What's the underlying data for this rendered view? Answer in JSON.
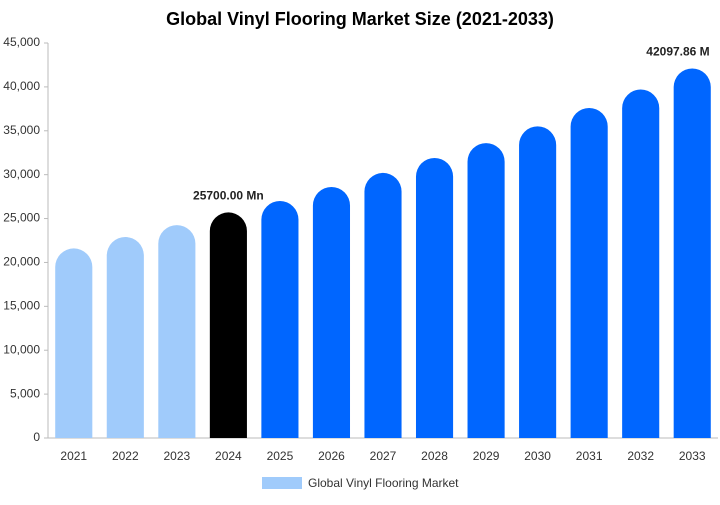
{
  "chart_data": {
    "type": "bar",
    "title": "Global Vinyl Flooring Market Size (2021-2033)",
    "categories": [
      "2021",
      "2022",
      "2023",
      "2024",
      "2025",
      "2026",
      "2027",
      "2028",
      "2029",
      "2030",
      "2031",
      "2032",
      "2033"
    ],
    "series": [
      {
        "name": "Global Vinyl Flooring Market",
        "color": "#a0cbfb",
        "bar_colors": [
          "#a0cbfb",
          "#a0cbfb",
          "#a0cbfb",
          "#000000",
          "#0066ff",
          "#0066ff",
          "#0066ff",
          "#0066ff",
          "#0066ff",
          "#0066ff",
          "#0066ff",
          "#0066ff",
          "#0066ff"
        ],
        "values": [
          21600,
          22900,
          24260,
          25700,
          27000,
          28600,
          30200,
          31900,
          33600,
          35500,
          37600,
          39700,
          42097.86
        ],
        "value_labels": [
          null,
          null,
          null,
          "25700.00 Mn",
          null,
          null,
          null,
          null,
          null,
          null,
          null,
          null,
          "42097.86 M"
        ]
      }
    ],
    "ylim": [
      0,
      45000
    ],
    "yticks": [
      0,
      {
        "value": 5000,
        "label": "5,000"
      },
      {
        "value": 10000,
        "label": "10,000"
      },
      {
        "value": 15000,
        "label": "15,000"
      },
      {
        "value": 20000,
        "label": "20,000"
      },
      {
        "value": 25000,
        "label": "25,000"
      },
      {
        "value": 30000,
        "label": "30,000"
      },
      {
        "value": 35000,
        "label": "35,000"
      },
      {
        "value": 40000,
        "label": "40,000"
      },
      {
        "value": 45000,
        "label": "45,000"
      }
    ],
    "grid": false
  }
}
